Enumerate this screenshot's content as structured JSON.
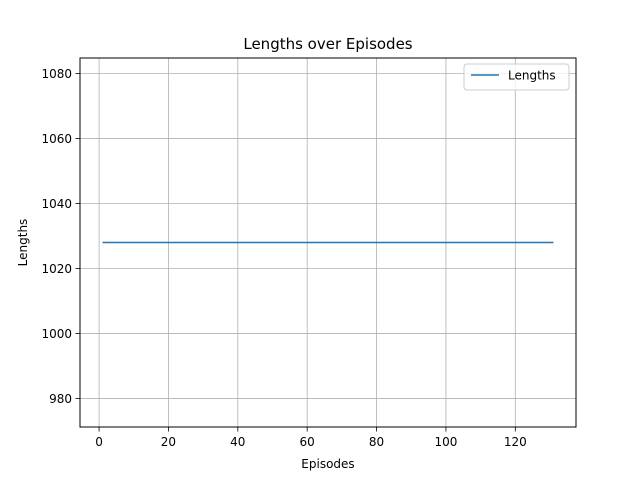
{
  "chart_data": {
    "type": "line",
    "title": "Lengths over Episodes",
    "xlabel": "Episodes",
    "ylabel": "Lengths",
    "xlim": [
      -5.5,
      137.5
    ],
    "ylim": [
      971.2,
      1084.8
    ],
    "xticks": [
      0,
      20,
      40,
      60,
      80,
      100,
      120
    ],
    "xtick_labels": [
      "0",
      "20",
      "40",
      "60",
      "80",
      "100",
      "120"
    ],
    "yticks": [
      980,
      1000,
      1020,
      1040,
      1060,
      1080
    ],
    "ytick_labels": [
      "980",
      "1000",
      "1020",
      "1040",
      "1060",
      "1080"
    ],
    "grid": true,
    "legend_position": "upper right",
    "series": [
      {
        "name": "Lengths",
        "color": "#1f77b4",
        "x": [
          1,
          131
        ],
        "y": [
          1028,
          1028
        ]
      }
    ]
  }
}
